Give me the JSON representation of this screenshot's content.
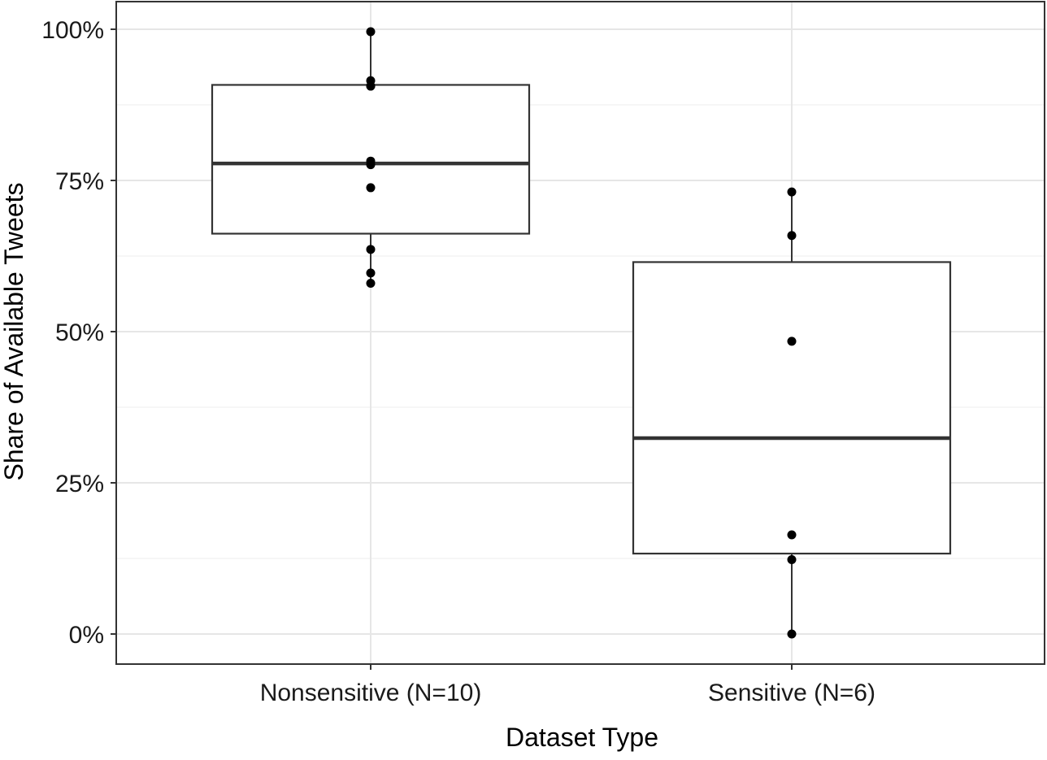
{
  "chart_data": {
    "type": "box",
    "xlabel": "Dataset Type",
    "ylabel": "Share of Available Tweets",
    "ylim": [
      -0.1,
      1.1
    ],
    "y_ticks": [
      0,
      0.25,
      0.5,
      0.75,
      1.0
    ],
    "y_tick_labels": [
      "0%",
      "25%",
      "50%",
      "75%",
      "100%"
    ],
    "grid": true,
    "categories": [
      "Nonsensitive (N=10)",
      "Sensitive (N=6)"
    ],
    "boxes": [
      {
        "category": "Nonsensitive (N=10)",
        "whisker_low": 0.58,
        "q1": 0.662,
        "median": 0.778,
        "q3": 0.908,
        "whisker_high": 0.996,
        "points": [
          0.996,
          0.915,
          0.906,
          0.782,
          0.776,
          0.738,
          0.636,
          0.597,
          0.58,
          0.906
        ]
      },
      {
        "category": "Sensitive (N=6)",
        "whisker_low": 0.0,
        "q1": 0.133,
        "median": 0.324,
        "q3": 0.615,
        "whisker_high": 0.731,
        "points": [
          0.731,
          0.659,
          0.484,
          0.164,
          0.123,
          0.0
        ]
      }
    ]
  }
}
